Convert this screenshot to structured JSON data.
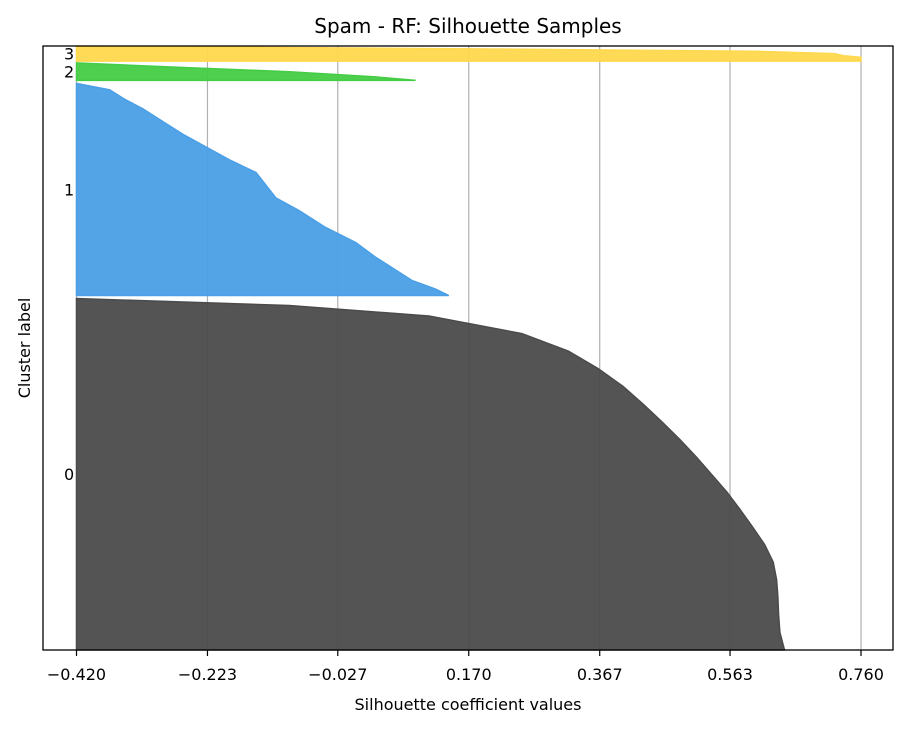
{
  "chart_data": {
    "type": "area",
    "title": "Spam - RF: Silhouette Samples",
    "xlabel": "Silhouette coefficient values",
    "ylabel": "Cluster label",
    "xlim": [
      -0.42,
      0.79
    ],
    "x_ticks": [
      "−0.420",
      "−0.223",
      "−0.027",
      "0.170",
      "0.367",
      "0.563",
      "0.760"
    ],
    "x_tick_values": [
      -0.42,
      -0.223,
      -0.027,
      0.17,
      0.367,
      0.563,
      0.76
    ],
    "grid": "vertical",
    "y_total": 100,
    "clusters": [
      {
        "label": "0",
        "color": "#4b4b4b",
        "y_start": 0,
        "y_end": 58.2,
        "profile": [
          [
            0.0,
            0.645
          ],
          [
            0.05,
            0.638
          ],
          [
            0.1,
            0.636
          ],
          [
            0.15,
            0.635
          ],
          [
            0.2,
            0.633
          ],
          [
            0.25,
            0.628
          ],
          [
            0.3,
            0.615
          ],
          [
            0.35,
            0.597
          ],
          [
            0.4,
            0.578
          ],
          [
            0.45,
            0.558
          ],
          [
            0.5,
            0.535
          ],
          [
            0.55,
            0.512
          ],
          [
            0.6,
            0.487
          ],
          [
            0.65,
            0.46
          ],
          [
            0.7,
            0.432
          ],
          [
            0.75,
            0.402
          ],
          [
            0.8,
            0.365
          ],
          [
            0.85,
            0.32
          ],
          [
            0.9,
            0.25
          ],
          [
            0.95,
            0.11
          ],
          [
            0.98,
            -0.1
          ],
          [
            1.0,
            -0.42
          ]
        ]
      },
      {
        "label": "1",
        "color": "#4a9fe6",
        "y_start": 58.7,
        "y_end": 93.8,
        "profile": [
          [
            0.0,
            0.14
          ],
          [
            0.03,
            0.12
          ],
          [
            0.07,
            0.085
          ],
          [
            0.12,
            0.06
          ],
          [
            0.18,
            0.03
          ],
          [
            0.25,
            0.0
          ],
          [
            0.32,
            -0.045
          ],
          [
            0.4,
            -0.085
          ],
          [
            0.46,
            -0.12
          ],
          [
            0.52,
            -0.135
          ],
          [
            0.58,
            -0.15
          ],
          [
            0.64,
            -0.19
          ],
          [
            0.7,
            -0.225
          ],
          [
            0.76,
            -0.26
          ],
          [
            0.82,
            -0.29
          ],
          [
            0.88,
            -0.32
          ],
          [
            0.93,
            -0.35
          ],
          [
            0.97,
            -0.37
          ],
          [
            1.0,
            -0.42
          ]
        ]
      },
      {
        "label": "2",
        "color": "#44cc44",
        "y_start": 94.3,
        "y_end": 97.2,
        "profile": [
          [
            0.0,
            0.09
          ],
          [
            0.2,
            0.03
          ],
          [
            0.5,
            -0.1
          ],
          [
            0.8,
            -0.3
          ],
          [
            1.0,
            -0.42
          ]
        ]
      },
      {
        "label": "3",
        "color": "#ffd84d",
        "y_start": 97.5,
        "y_end": 100,
        "profile": [
          [
            0.0,
            0.76
          ],
          [
            0.25,
            0.76
          ],
          [
            0.35,
            0.735
          ],
          [
            0.5,
            0.72
          ],
          [
            0.65,
            0.6
          ],
          [
            0.8,
            0.2
          ],
          [
            1.0,
            -0.42
          ]
        ]
      }
    ]
  }
}
